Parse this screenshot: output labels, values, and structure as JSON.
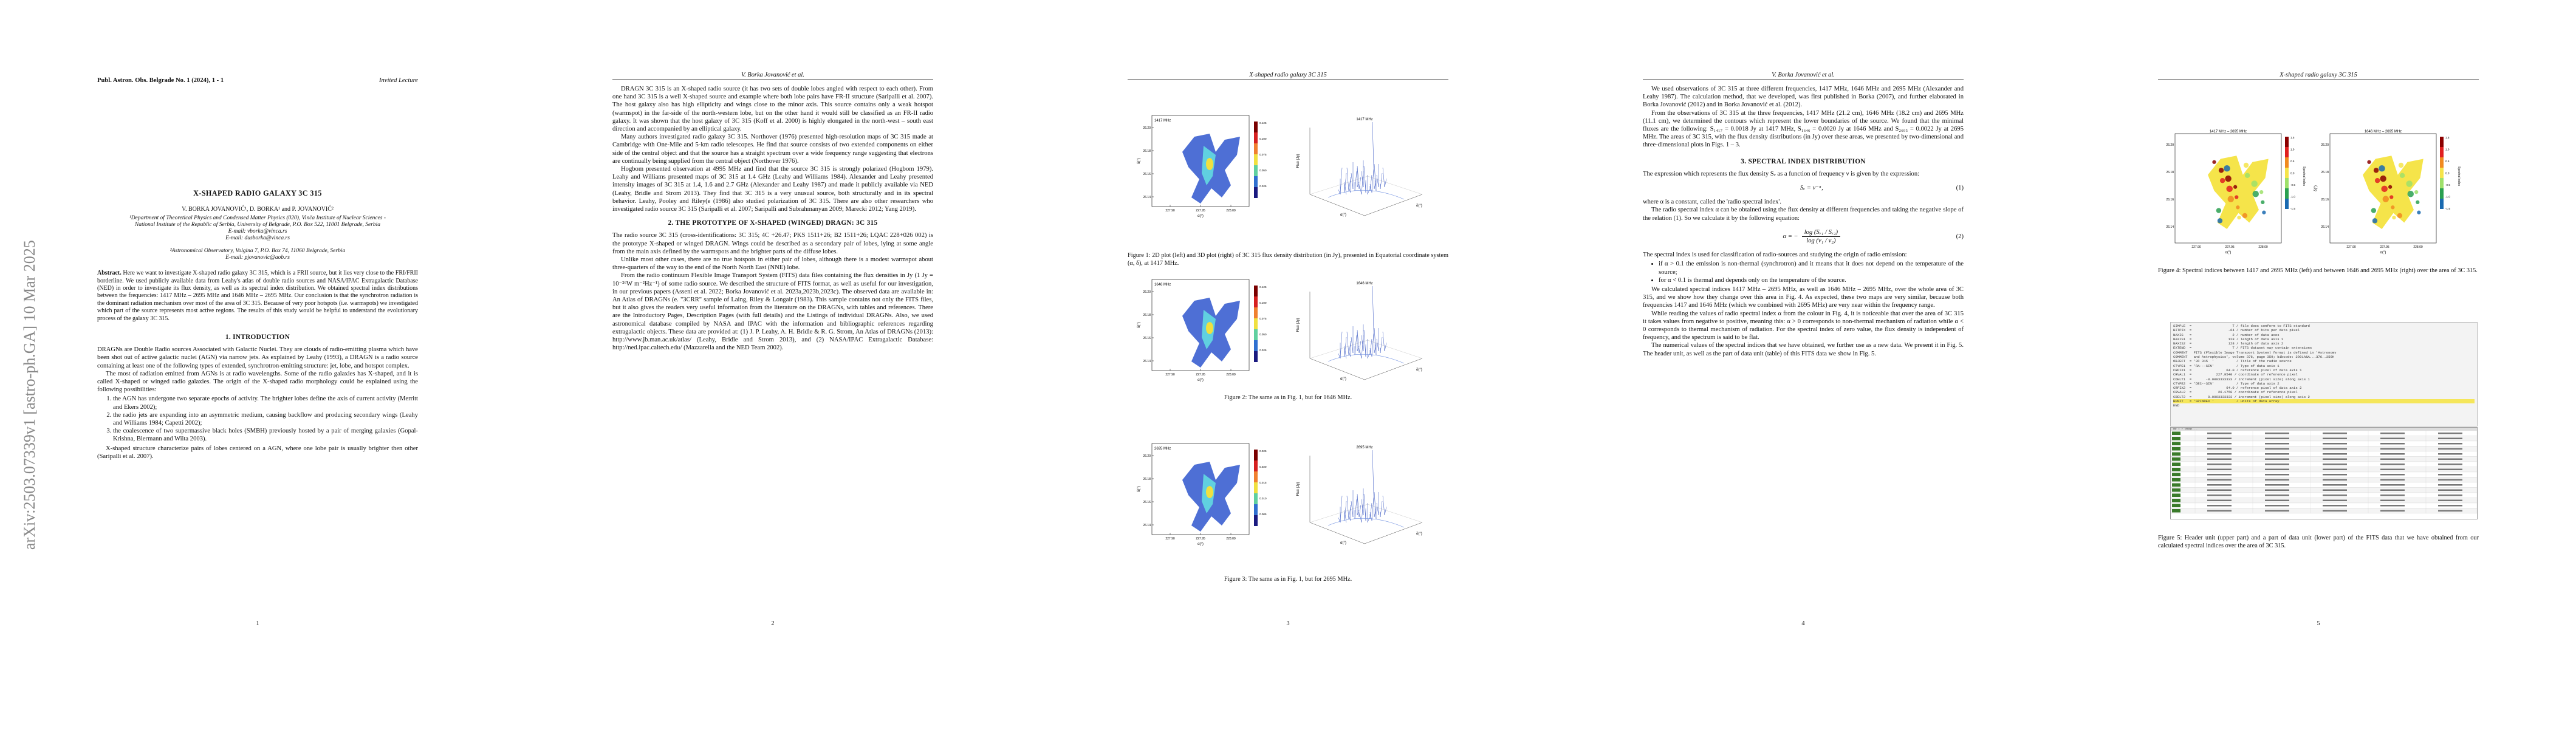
{
  "arxiv_stamp": "arXiv:2503.07339v1  [astro-ph.GA]  10 Mar 2025",
  "page1": {
    "journal": "Publ. Astron. Obs. Belgrade No. 1 (2024), 1 - 1",
    "lecture_type": "Invited Lecture",
    "title": "X-SHAPED RADIO GALAXY 3C 315",
    "authors": "V. BORKA JOVANOVIĆ¹, D. BORKA¹ and P. JOVANOVIĆ²",
    "aff1": "¹Department of Theoretical Physics and Condensed Matter Physics (020), Vinča Institute of Nuclear Sciences - National Institute of the Republic of Serbia, University of Belgrade, P.O. Box 522, 11001 Belgrade, Serbia",
    "email1": "E-mail: vborka@vinca.rs",
    "email2": "E-mail: dusborka@vinca.rs",
    "aff2": "²Astronomical Observatory, Volgina 7, P.O. Box 74, 11060 Belgrade, Serbia",
    "email3": "E-mail: pjovanovic@aob.rs",
    "abstract_label": "Abstract.",
    "abstract": "Here we want to investigate X-shaped radio galaxy 3C 315, which is a FRII source, but it lies very close to the FRI/FRII borderline. We used publicly available data from Leahy's atlas of double radio sources and NASA/IPAC Extragalactic Database (NED) in order to investigate its flux density, as well as its spectral index distribution. We obtained spectral index distributions between the frequencies: 1417 MHz – 2695 MHz and 1646 MHz – 2695 MHz. Our conclusion is that the synchrotron radiation is the dominant radiation mechanism over most of the area of 3C 315. Because of very poor hotspots (i.e. warmspots) we investigated which part of the source represents most active regions. The results of this study would be helpful to understand the evolutionary process of the galaxy 3C 315.",
    "sec1": "1. INTRODUCTION",
    "intro1": "DRAGNs are Double Radio sources Associated with Galactic Nuclei. They are clouds of radio-emitting plasma which have been shot out of active galactic nuclei (AGN) via narrow jets. As explained by Leahy (1993), a DRAGN is a radio source containing at least one of the following types of extended, synchrotron-emitting structure: jet, lobe, and hotspot complex.",
    "intro2": "The most of radiation emitted from AGNs is at radio wavelengths. Some of the radio galaxies has X-shaped, and it is called X-shaped or winged radio galaxies. The origin of the X-shaped radio morphology could be explained using the following possibilities:",
    "list": [
      "the AGN has undergone two separate epochs of activity. The brighter lobes define the axis of current activity (Merritt and Ekers 2002);",
      "the radio jets are expanding into an asymmetric medium, causing backflow and producing secondary wings (Leahy and Williams 1984; Capetti 2002);",
      "the coalescence of two supermassive black holes (SMBH) previously hosted by a pair of merging galaxies (Gopal-Krishna, Biermann and Wiita 2003)."
    ],
    "intro3": "X-shaped structure characterize pairs of lobes centered on a AGN, where one lobe pair is usually brighter then other (Saripalli et al. 2007).",
    "page_num": "1"
  },
  "page2": {
    "running_head": "V. Borka Jovanović et al.",
    "p1": "DRAGN 3C 315 is an X-shaped radio source (it has two sets of double lobes angled with respect to each other). From one hand 3C 315 is a well X-shaped source and example where both lobe pairs have FR-II structure (Saripalli et al. 2007). The host galaxy also has high ellipticity and wings close to the minor axis. This source contains only a weak hotspot (warmspot) in the far-side of the north-western lobe, but on the other hand it would still be classified as an FR-II radio galaxy. It was shown that the host galaxy of 3C 315 (Koff et al. 2000) is highly elongated in the north-west – south east direction and accompanied by an elliptical galaxy.",
    "p2": "Many authors investigated radio galaxy 3C 315. Northover (1976) presented high-resolution maps of 3C 315 made at Cambridge with One-Mile and 5-km radio telescopes. He find that source consists of two extended components on either side of the central object and that the source has a straight spectrum over a wide frequency range suggesting that electrons are continually being supplied from the central object (Northover 1976).",
    "p3": "Hogbom presented observation at 4995 MHz and find that the source 3C 315 is strongly polarized (Hogbom 1979). Leahy and Williams presented maps of 3C 315 at 1.4 GHz (Leahy and Williams 1984). Alexander and Leahy presented intensity images of 3C 315 at 1.4, 1.6 and 2.7 GHz (Alexander and Leahy 1987) and made it publicly available via NED (Leahy, Bridle and Strom 2013). They find that 3C 315 is a very unusual source, both structurally and in its spectral behavior. Leahy, Pooley and Riley(e (1986) also studied polarization of 3C 315. There are also other researchers who investigated radio source 3C 315 (Saripalli et al. 2007; Saripalli and Subrahmanyan 2009; Marecki 2012; Yang 2019).",
    "sec2": "2. THE PROTOTYPE OF X-SHAPED (WINGED) DRAGN: 3C 315",
    "p4": "The radio source 3C 315 (cross-identifications: 3C 315; 4C +26.47; PKS 1511+26; B2 1511+26; LQAC 228+026 002) is the prototype X-shaped or winged DRAGN. Wings could be described as a secondary pair of lobes, lying at some angle from the main axis defined by the warmspots and the brighter parts of the diffuse lobes.",
    "p5": "Unlike most other cases, there are no true hotspots in either pair of lobes, although there is a modest warmspot about three-quarters of the way to the end of the North North East (NNE) lobe.",
    "p6": "From the radio continuum Flexible Image Transport System (FITS) data files containing the flux densities in Jy (1 Jy = 10⁻²⁶W m⁻²Hz⁻¹) of some radio source. We described the structure of FITS format, as well as useful for our investigation, in our previous papers (Asseni et al. 2022; Borka Jovanović et al. 2023a,2023b,2023c). The observed data are available in: An Atlas of DRAGNs (e. \"3CRR\" sample of Laing, Riley & Longair (1983). This sample contains not only the FITS files, but it also gives the readers very useful information from the literature on the DRAGNs, with tables and references. There are the Introductory Pages, Description Pages (with full details) and the Listings of individual DRAGNs. Also, we used astronomical database compiled by NASA and IPAC with the information and bibliographic references regarding extragalactic objects. These data are provided at: (1) J. P. Leahy, A. H. Bridle & R. G. Strom, An Atlas of DRAGNs (2013): http://www.jb.man.ac.uk/atlas/ (Leahy, Bridle and Strom 2013), and (2) NASA/IPAC Extragalactic Database: http://ned.ipac.caltech.edu/ (Mazzarella and the NED Team 2002).",
    "page_num": "2"
  },
  "page3": {
    "running_head": "X-shaped radio galaxy 3C 315",
    "fig_freqs": [
      "1417 MHz",
      "1646 MHz",
      "2695 MHz"
    ],
    "x_tick_labels": [
      "227.90",
      "227.95",
      "228.00"
    ],
    "y_tick_labels": [
      "26.20",
      "26.18",
      "26.16",
      "26.14"
    ],
    "colorbar_ticks_1": [
      "0.125",
      "0.100",
      "0.075",
      "0.050",
      "0.025"
    ],
    "colorbar_ticks_2": [
      "0.125",
      "0.100",
      "0.075",
      "0.050",
      "0.025"
    ],
    "colorbar_ticks_3": [
      "0.025",
      "0.020",
      "0.015",
      "0.010",
      "0.005"
    ],
    "ylabel_map": "δ(°)",
    "xlabel_map": "α(°)",
    "zlabel_3d": "Flux (Jy)",
    "cap1": "Figure 1: 2D plot (left) and 3D plot (right) of 3C 315 flux density distribution (in Jy), presented in Equatorial coordinate system (α, δ), at 1417 MHz.",
    "cap2": "Figure 2: The same as in Fig. 1, but for 1646 MHz.",
    "cap3": "Figure 3: The same as in Fig. 1, but for 2695 MHz.",
    "page_num": "3"
  },
  "page4": {
    "running_head": "V. Borka Jovanović et al.",
    "p1": "We used observations of 3C 315 at three different frequencies, 1417 MHz, 1646 MHz and 2695 MHz (Alexander and Leahy 1987). The calculation method, that we developed, was first published in Borka (2007), and further elaborated in Borka Jovanović (2012) and in Borka Jovanović et al. (2012).",
    "p2": "From the observations of 3C 315 at the three frequencies, 1417 MHz (21.2 cm), 1646 MHz (18.2 cm) and 2695 MHz (11.1 cm), we determined the contours which represent the lower boundaries of the source. We found that the minimal fluxes are the following: S₁₄₁₇ = 0.0018 Jy at 1417 MHz, S₁₆₄₆ = 0.0020 Jy at 1646 MHz and S₂₆₉₅ = 0.0022 Jy at 2695 MHz. The areas of 3C 315, with the flux density distributions (in Jy) over these areas, we presented by two-dimensional and three-dimensional plots in Figs. 1 – 3.",
    "sec3": "3. SPECTRAL INDEX DISTRIBUTION",
    "p3": "The expression which represents the flux density Sᵥ as a function of frequency ν is given by the expression:",
    "eq1": "Sᵥ = ν⁻ᵅ,",
    "eq1_num": "(1)",
    "p4": "where α is a constant, called the 'radio spectral index'.",
    "p5": "The radio spectral index α can be obtained using the flux density at different frequencies and taking the negative slope of the relation (1). So we calculate it by the following equation:",
    "eq2_lhs": "α = −",
    "eq2_num_top": "log (Sᵥ₁ / Sᵥ₂)",
    "eq2_num_bot": "log (ν₁ / ν₂)",
    "eq2_num": "(2)",
    "p6": "The spectral index is used for classification of radio-sources and studying the origin of radio emission:",
    "bul": [
      "if α > 0.1 the emission is non-thermal (synchrotron) and it means that it does not depend on the temperature of the source;",
      "for α < 0.1 is thermal and depends only on the temperature of the source."
    ],
    "p7": "We calculated spectral indices 1417 MHz – 2695 MHz, as well as 1646 MHz – 2695 MHz, over the whole area of 3C 315, and we show how they change over this area in Fig. 4. As expected, these two maps are very similar, because both frequencies 1417 and 1646 MHz (which we combined with 2695 MHz) are very near within the frequency range.",
    "p8": "While reading the values of radio spectral index α from the colour in Fig. 4, it is noticeable that over the area of 3C 315 it takes values from negative to positive, meaning this: α > 0 corresponds to non-thermal mechanism of radiation while α < 0 corresponds to thermal mechanism of radiation. For the spectral index of zero value, the flux density is independent of frequency, and the spectrum is said to be flat.",
    "p9": "The numerical values of the spectral indices that we have obtained, we further use as a new data. We present it in Fig. 5. The header unit, as well as the part of data unit (table) of this FITS data we show in Fig. 5.",
    "page_num": "4"
  },
  "page5": {
    "running_head": "X-shaped radio galaxy 3C 315",
    "fig4_titles": [
      "1417 MHz – 2695 MHz",
      "1646 MHz – 2695 MHz"
    ],
    "fig4_cbar_ticks": [
      "1.5",
      "1.0",
      "0.5",
      "0.0",
      "-0.5",
      "-1.0",
      "-1.5"
    ],
    "fig4_cbar_label": "Spectral Index",
    "cap4": "Figure 4: Spectral indices between 1417 and 2695 MHz (left) and between 1646 and 2695 MHz (right) over the area of 3C 315.",
    "header_lines": [
      "SIMPLE  =                    T / file does conform to FITS standard",
      "BITPIX  =                  -64 / number of bits per data pixel",
      "NAXIS   =                    2 / number of data axes",
      "NAXIS1  =                  128 / length of data axis 1",
      "NAXIS2  =                  128 / length of data axis 2",
      "EXTEND  =                    T / FITS dataset may contain extensions",
      "COMMENT   FITS (Flexible Image Transport System) format is defined in 'Astronomy",
      "COMMENT   and Astrophysics', volume 376, page 359; bibcode: 2001A&A...376..359H",
      "OBJECT  = '3C 315  '           / Title of the radio source",
      "CTYPE1  = 'RA---SIN'           / Type of data axis 1",
      "CRPIX1  =                 64.0 / reference pixel of data axis 1",
      "CRVAL1  =            227.9540 / coordinate of reference pixel",
      "CDELT1  =       -0.0003333333 / increment (pixel size) along axis 1",
      "CTYPE2  = 'DEC--SIN'           / Type of data axis 2",
      "CRPIX2  =                 64.0 / reference pixel of data axis 2",
      "CRVAL2  =             26.1750 / coordinate of reference pixel",
      "CDELT2  =        0.0003333333 / increment (pixel size) along axis 2",
      "BUNIT   = 'SPINDEX '           / units of data array",
      "END"
    ],
    "table_header": "ROW  X  Y  SPINDEX  ...",
    "cap5": "Figure 5: Header unit (upper part) and a part of data unit (lower part) of the FITS data that we have obtained from our calculated spectral indices over the area of 3C 315.",
    "page_num": "5"
  }
}
